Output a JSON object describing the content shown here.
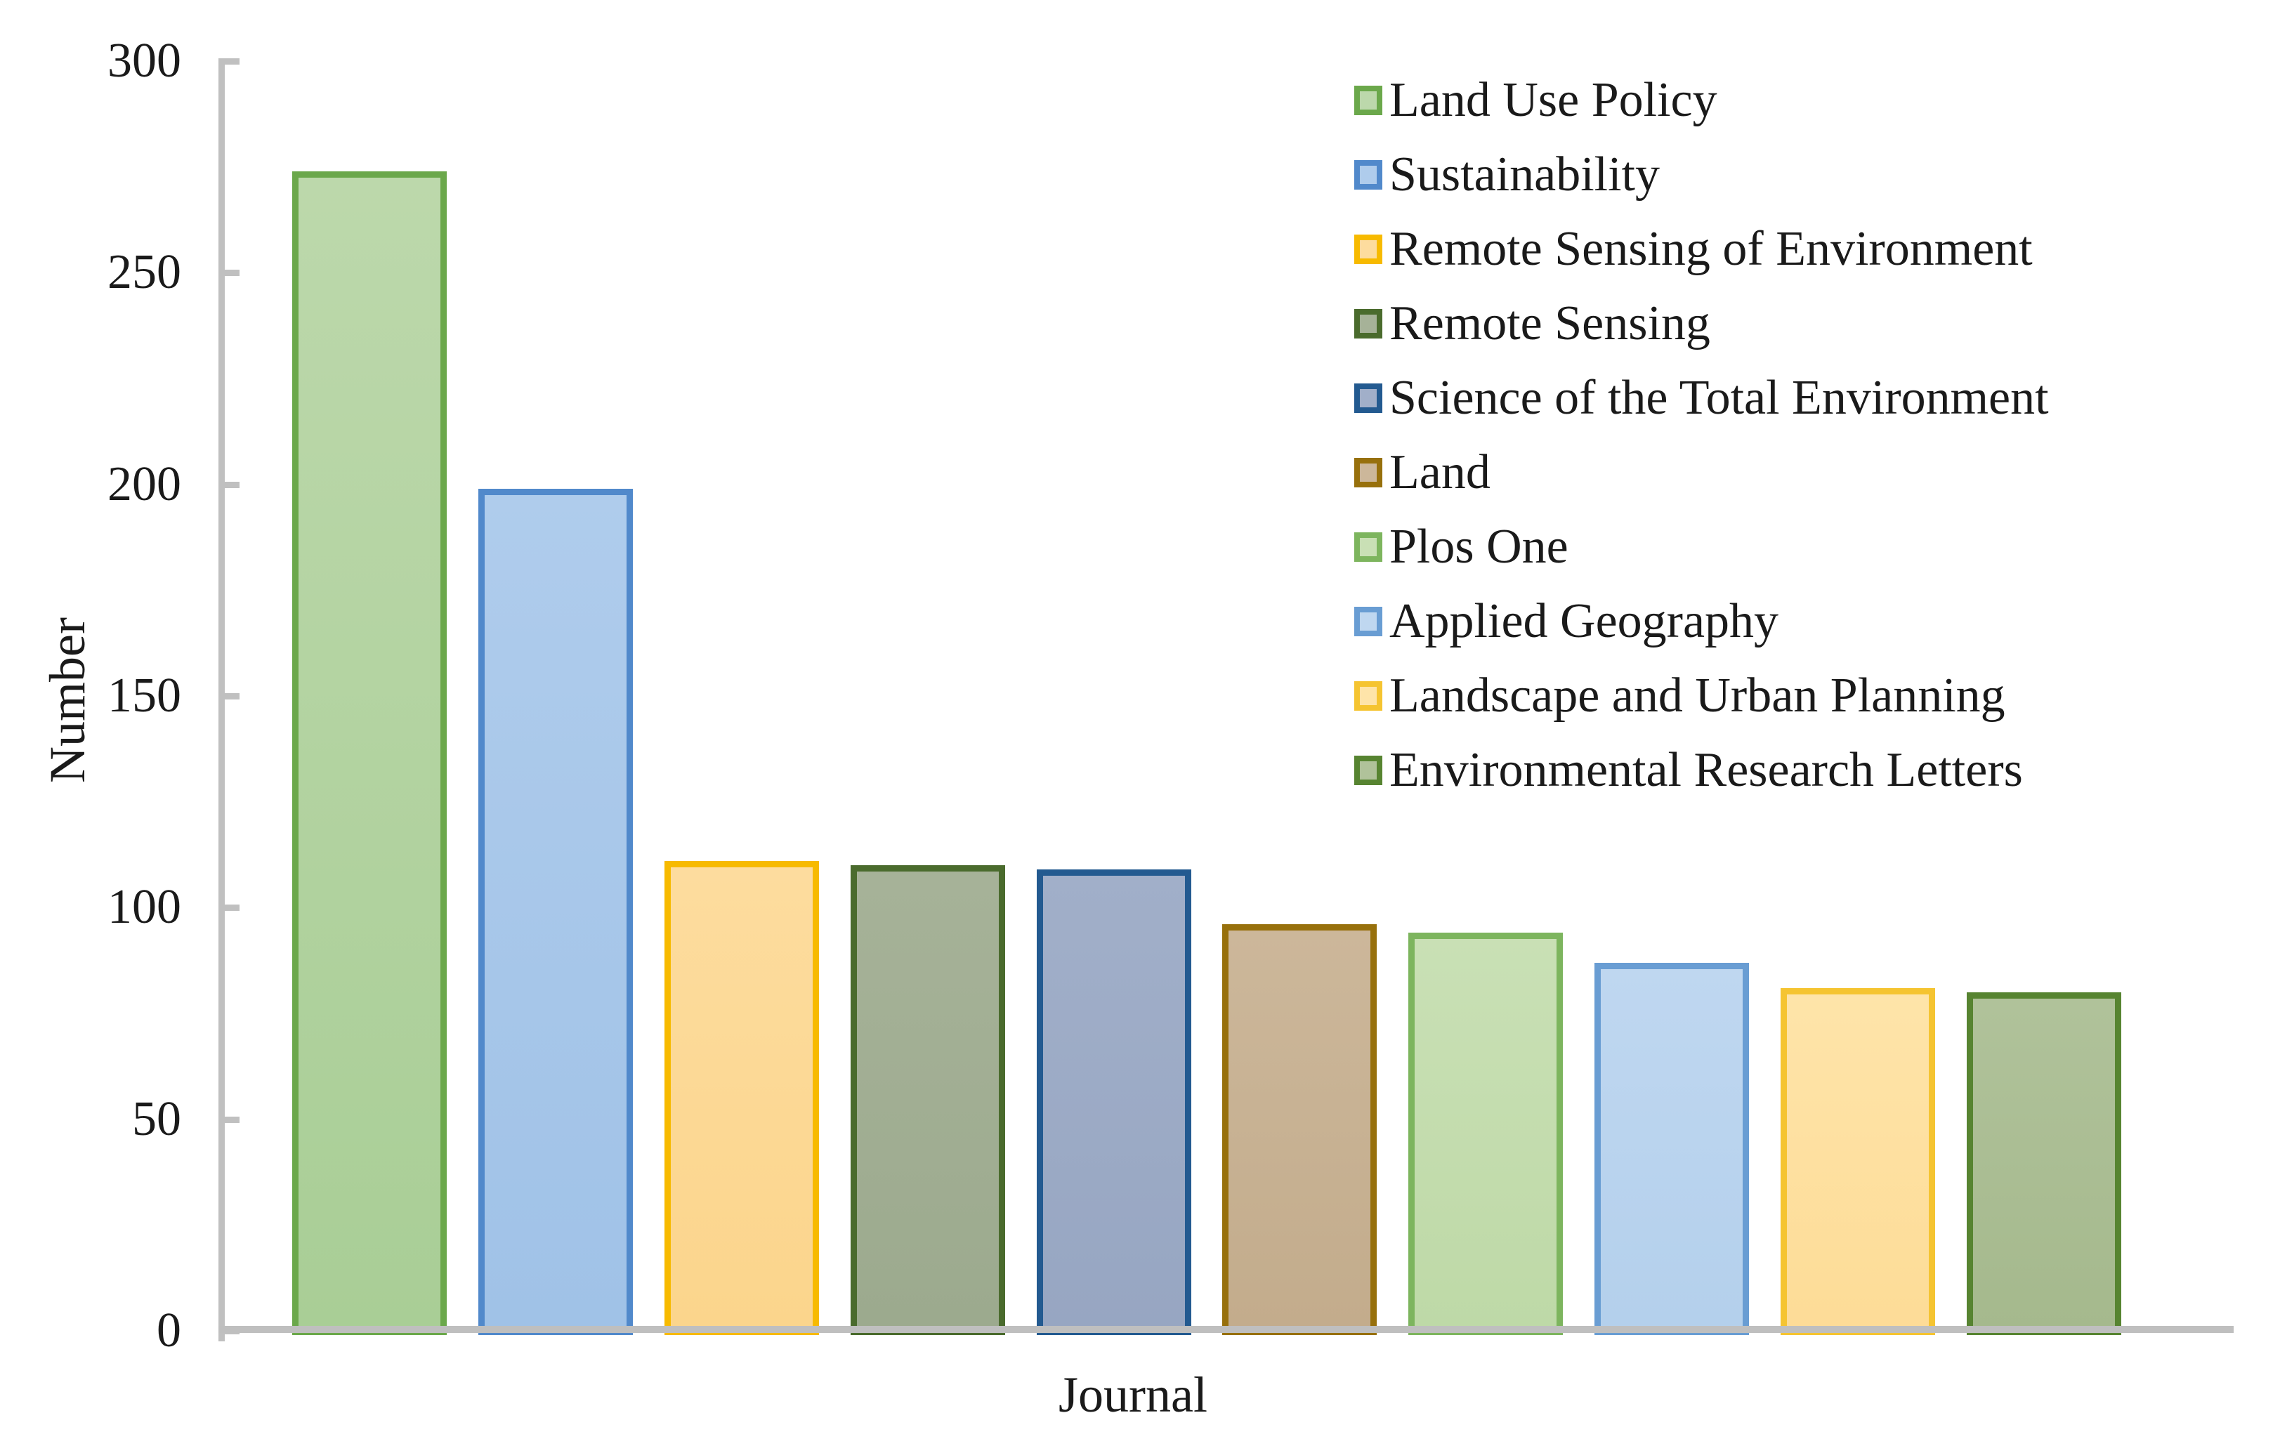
{
  "chart_data": {
    "type": "bar",
    "title": "",
    "xlabel": "Journal",
    "ylabel": "Number",
    "ylim": [
      0,
      300
    ],
    "yticks": [
      300,
      250,
      200,
      150,
      100,
      50,
      0
    ],
    "grid": false,
    "legend_position": "upper-right-inside",
    "axis_color": "#c0c0c0",
    "text_color": "#1a1a1a",
    "categories": [
      "Land Use Policy",
      "Sustainability",
      "Remote Sensing of Environment",
      "Remote Sensing",
      "Science of the Total Environment",
      "Land",
      "Plos One",
      "Applied Geography",
      "Landscape and Urban Planning",
      "Environmental Research Letters"
    ],
    "values": [
      274,
      199,
      111,
      110,
      109,
      96,
      94,
      87,
      81,
      80
    ],
    "series": [
      {
        "name": "Land Use Policy",
        "value": 274,
        "border_color": "#6BA84B",
        "fill_color": "#A9CE96",
        "fill_light": "#BCD8AB"
      },
      {
        "name": "Sustainability",
        "value": 199,
        "border_color": "#5189CB",
        "fill_color": "#A0C2E7",
        "fill_light": "#AFCCEC"
      },
      {
        "name": "Remote Sensing of Environment",
        "value": 111,
        "border_color": "#F7BA00",
        "fill_color": "#FBD58C",
        "fill_light": "#FDDC9E"
      },
      {
        "name": "Remote Sensing",
        "value": 110,
        "border_color": "#4A6B2D",
        "fill_color": "#9CAA8E",
        "fill_light": "#A6B298"
      },
      {
        "name": "Science of the Total Environment",
        "value": 109,
        "border_color": "#235A90",
        "fill_color": "#97A6C2",
        "fill_light": "#A1AFC9"
      },
      {
        "name": "Land",
        "value": 96,
        "border_color": "#97700C",
        "fill_color": "#C3AC8C",
        "fill_light": "#CCB79A"
      },
      {
        "name": "Plos One",
        "value": 94,
        "border_color": "#7DB55E",
        "fill_color": "#BED9A7",
        "fill_light": "#C9E0B5"
      },
      {
        "name": "Applied Geography",
        "value": 87,
        "border_color": "#699DD3",
        "fill_color": "#B4D0EC",
        "fill_light": "#BFD7F0"
      },
      {
        "name": "Landscape and Urban Planning",
        "value": 81,
        "border_color": "#F5C431",
        "fill_color": "#FDDC97",
        "fill_light": "#FEE4A9"
      },
      {
        "name": "Environmental Research Letters",
        "value": 80,
        "border_color": "#578431",
        "fill_color": "#A5B98D",
        "fill_light": "#B0C29A"
      }
    ]
  }
}
